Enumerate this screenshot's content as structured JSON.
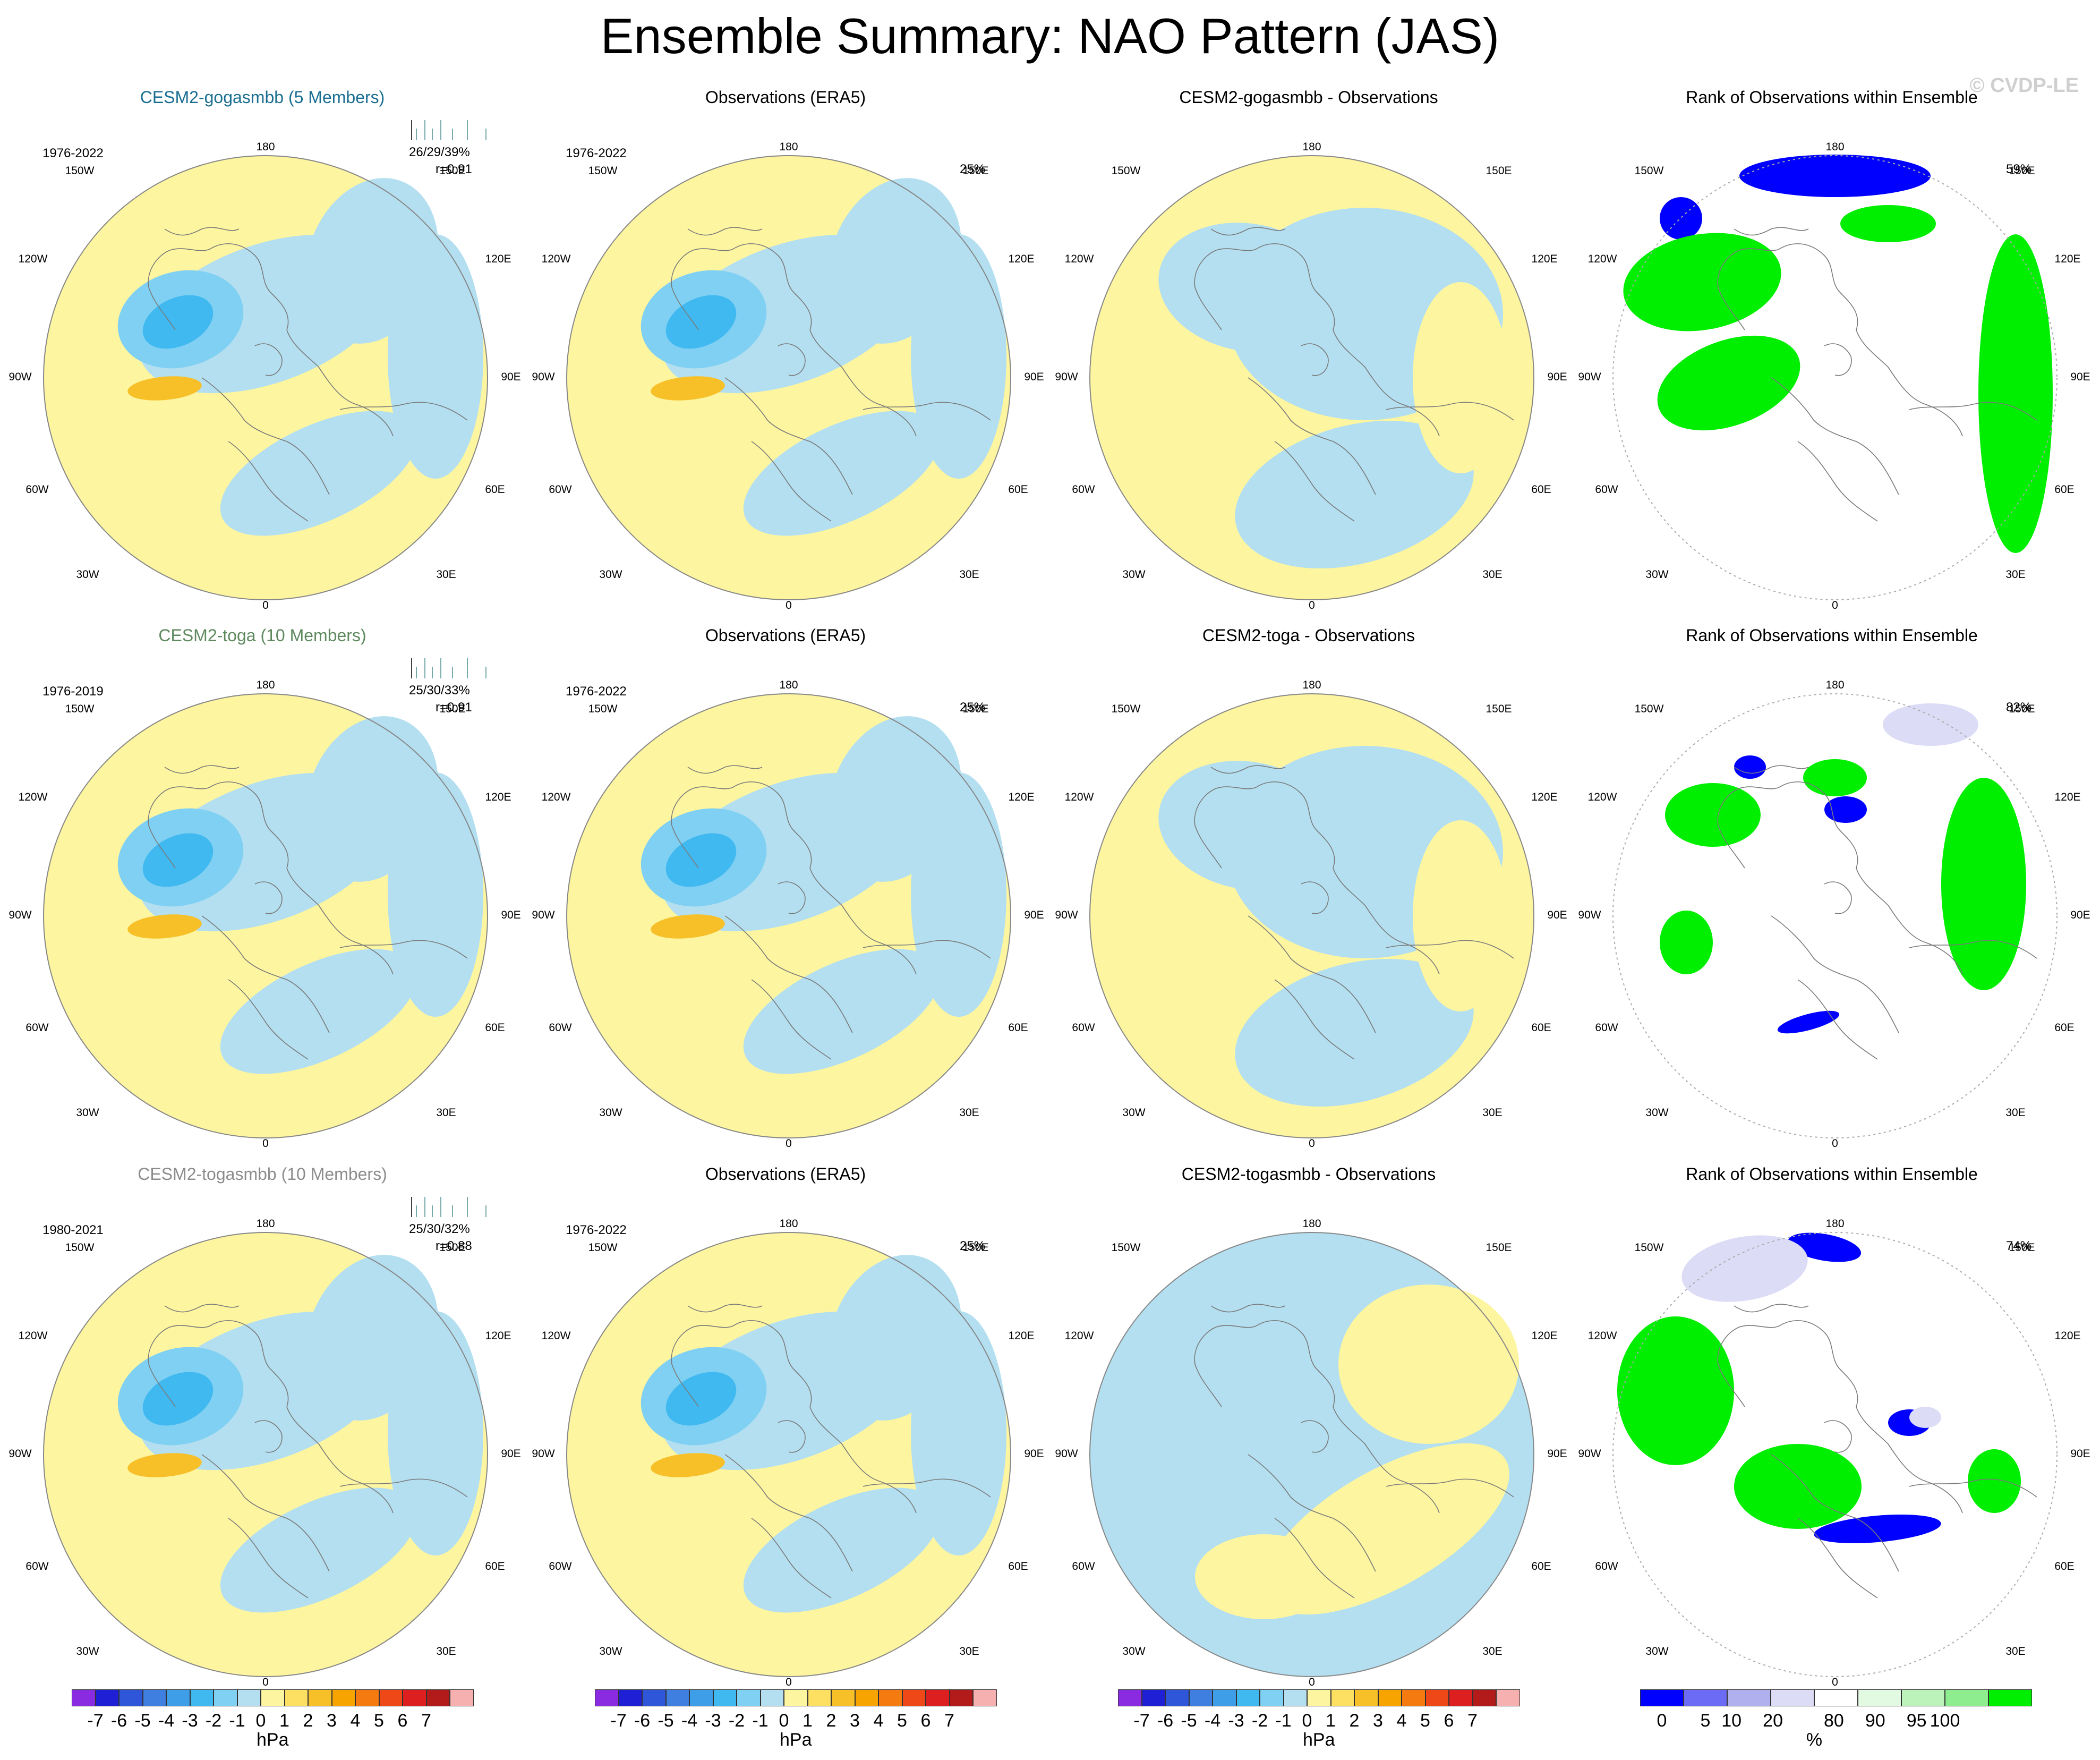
{
  "title": "Ensemble Summary: NAO Pattern (JAS)",
  "watermark": "© CVDP-LE",
  "panels": [
    {
      "row": 0,
      "col": 0,
      "kind": "ens",
      "title": "CESM2-gogasmbb (5 Members)",
      "title_color": "#1a6e92",
      "period": "1976-2022",
      "stat": "26/29/39%",
      "corr": "r=0.91"
    },
    {
      "row": 0,
      "col": 1,
      "kind": "obs",
      "title": "Observations (ERA5)",
      "period": "1976-2022",
      "pct": "25%"
    },
    {
      "row": 0,
      "col": 2,
      "kind": "diff",
      "title": "CESM2-gogasmbb - Observations"
    },
    {
      "row": 0,
      "col": 3,
      "kind": "rank",
      "title": "Rank of Observations within Ensemble",
      "pct": "59%"
    },
    {
      "row": 1,
      "col": 0,
      "kind": "ens",
      "title": "CESM2-toga (10 Members)",
      "title_color": "#5f8a5f",
      "period": "1976-2019",
      "stat": "25/30/33%",
      "corr": "r=0.91"
    },
    {
      "row": 1,
      "col": 1,
      "kind": "obs",
      "title": "Observations (ERA5)",
      "period": "1976-2022",
      "pct": "25%"
    },
    {
      "row": 1,
      "col": 2,
      "kind": "diff",
      "title": "CESM2-toga - Observations"
    },
    {
      "row": 1,
      "col": 3,
      "kind": "rank",
      "title": "Rank of Observations within Ensemble",
      "pct": "82%"
    },
    {
      "row": 2,
      "col": 0,
      "kind": "ens",
      "title": "CESM2-togasmbb (10 Members)",
      "title_color": "#8c8c8c",
      "period": "1980-2021",
      "stat": "25/30/32%",
      "corr": "r=0.88"
    },
    {
      "row": 2,
      "col": 1,
      "kind": "obs",
      "title": "Observations (ERA5)",
      "period": "1976-2022",
      "pct": "25%"
    },
    {
      "row": 2,
      "col": 2,
      "kind": "diff",
      "title": "CESM2-togasmbb - Observations"
    },
    {
      "row": 2,
      "col": 3,
      "kind": "rank",
      "title": "Rank of Observations within Ensemble",
      "pct": "74%"
    }
  ],
  "map_labels": {
    "top": "180",
    "bottom": "0",
    "left": "90W",
    "right": "90E",
    "ul1": "150W",
    "ul2": "120W",
    "ur1": "150E",
    "ur2": "120E",
    "ll1": "60W",
    "ll2": "30W",
    "lr1": "60E",
    "lr2": "30E"
  },
  "chart_data": {
    "type": "map",
    "projection": "north polar stereographic",
    "variable": "NAO pattern sea level pressure",
    "pattern_colorbar": {
      "unit": "hPa",
      "ticks": [
        "-7",
        "-6",
        "-5",
        "-4",
        "-3",
        "-2",
        "-1",
        "0",
        "1",
        "2",
        "3",
        "4",
        "5",
        "6",
        "7"
      ],
      "colors": [
        "#8a2be2",
        "#1f1fd6",
        "#2f55d8",
        "#3f7fe0",
        "#3f9ee8",
        "#40b9f0",
        "#7fd0f2",
        "#b3dff0",
        "#fdf5a0",
        "#fde062",
        "#f8c028",
        "#f7a400",
        "#f57a10",
        "#ef4818",
        "#dd1f1f",
        "#b31a1a",
        "#f7b0b0"
      ]
    },
    "rank_colorbar": {
      "unit": "%",
      "ticks": [
        "0",
        "5",
        "10",
        "20",
        "80",
        "90",
        "95",
        "100"
      ],
      "colors": [
        "#0000ff",
        "#6b6bf5",
        "#b0b0ee",
        "#dcdcf7",
        "#ffffff",
        "#e2f9e2",
        "#bbf3bb",
        "#8eed8e",
        "#00ee00"
      ]
    }
  },
  "colors": {
    "neg": "#b3dff0",
    "pos": "#fdf5a0",
    "neg2": "#7fd0f2",
    "neg3": "#40b9f0",
    "pos2": "#f8c028",
    "green": "#00ee00",
    "blue": "#0000ff",
    "lav": "#dcdcf7",
    "lgreen": "#e2f9e2"
  }
}
